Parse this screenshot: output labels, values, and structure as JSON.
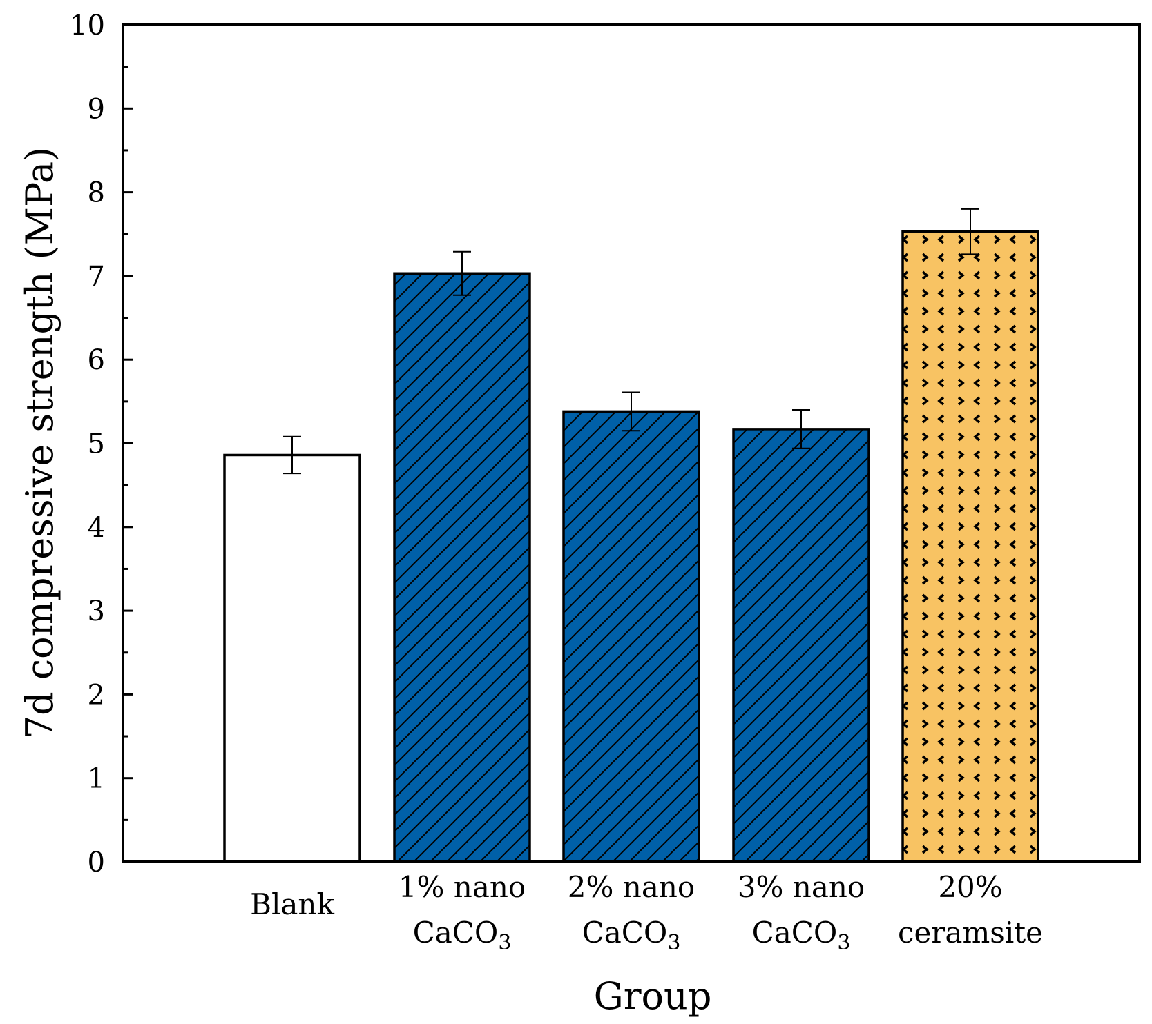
{
  "chart_data": {
    "type": "bar",
    "title": "",
    "xlabel": "Group",
    "ylabel": "7d compressive strength (MPa)",
    "ylim": [
      0,
      10
    ],
    "yticks": [
      "0",
      "1",
      "2",
      "3",
      "4",
      "5",
      "6",
      "7",
      "8",
      "9",
      "10"
    ],
    "grid": false,
    "categories": [
      {
        "line1": "Blank",
        "line2": "",
        "sub": ""
      },
      {
        "line1": "1% nano",
        "line2": "CaCO",
        "sub": "3"
      },
      {
        "line1": "2% nano",
        "line2": "CaCO",
        "sub": "3"
      },
      {
        "line1": "3% nano",
        "line2": "CaCO",
        "sub": "3"
      },
      {
        "line1": "20%",
        "line2": "ceramsite",
        "sub": ""
      }
    ],
    "values": [
      4.86,
      7.03,
      5.38,
      5.17,
      7.53
    ],
    "errors": [
      0.22,
      0.26,
      0.23,
      0.23,
      0.27
    ],
    "colors": [
      "#ffffff",
      "#0060a8",
      "#0060a8",
      "#0060a8",
      "#f8c363"
    ],
    "patterns": [
      "none",
      "hatch",
      "hatch",
      "hatch",
      "dots"
    ]
  }
}
